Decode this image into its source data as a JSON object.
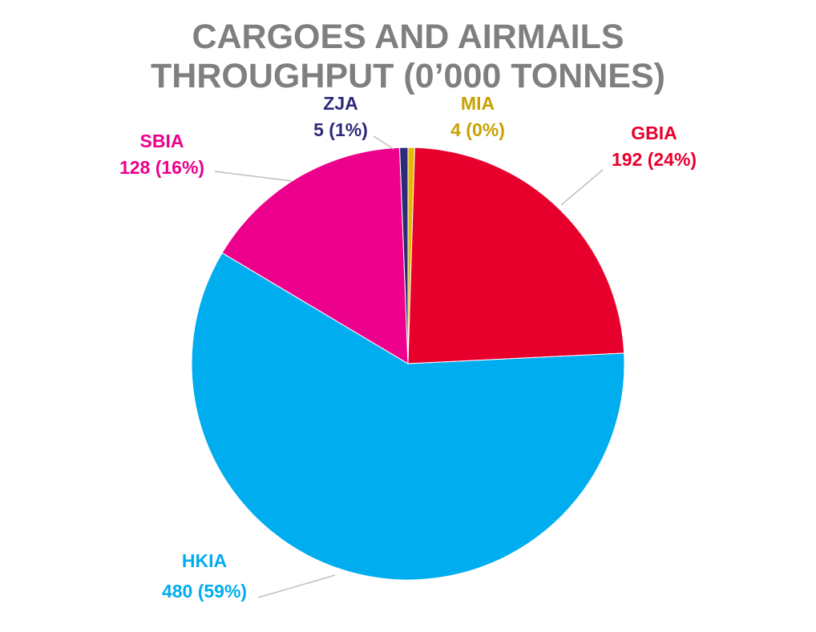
{
  "chart_data": {
    "type": "pie",
    "title": [
      "CARGOES AND AIRMAILS",
      "THROUGHPUT (0’000 TONNES)"
    ],
    "slices": [
      {
        "name": "MIA",
        "value": 4,
        "percent_label": "4 (0%)",
        "color": "#e6b800",
        "text_color": "#c9a000"
      },
      {
        "name": "GBIA",
        "value": 192,
        "percent_label": "192 (24%)",
        "color": "#e8002d",
        "text_color": "#e8002d"
      },
      {
        "name": "HKIA",
        "value": 480,
        "percent_label": "480 (59%)",
        "color": "#00adef",
        "text_color": "#00adef"
      },
      {
        "name": "SBIA",
        "value": 128,
        "percent_label": "128 (16%)",
        "color": "#ec008c",
        "text_color": "#ec008c"
      },
      {
        "name": "ZJA",
        "value": 5,
        "percent_label": "5 (1%)",
        "color": "#2e2a7a",
        "text_color": "#2e2a7a"
      }
    ]
  }
}
